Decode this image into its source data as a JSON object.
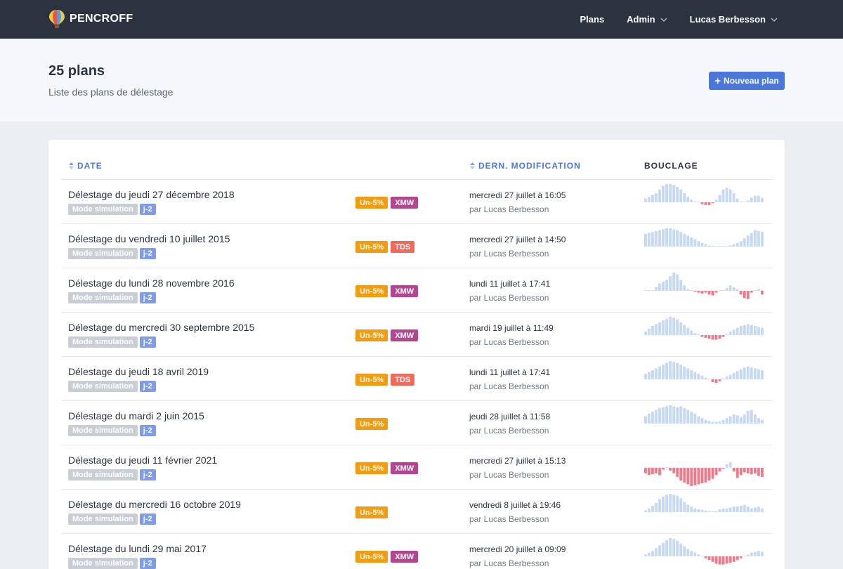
{
  "header": {
    "brand": "PENCROFF",
    "nav": {
      "plans": "Plans",
      "admin": "Admin",
      "user": "Lucas Berbesson"
    },
    "logo_icon": "hot-air-balloon-icon"
  },
  "hero": {
    "title": "25 plans",
    "subtitle": "Liste des plans de délestage",
    "new_button": "Nouveau plan"
  },
  "table": {
    "columns": {
      "date": "DATE",
      "modified": "DERN. MODIFICATION",
      "loop": "BOUCLAGE"
    },
    "colors": {
      "positive": "#c5d8f5",
      "negative": "#ee7a8a"
    },
    "rows": [
      {
        "title": "Délestage du jeudi 27 décembre 2018",
        "mode": "Mode simulation",
        "day": "j-2",
        "badges": [
          {
            "label": "Un-5%",
            "kind": "un"
          },
          {
            "label": "XMW",
            "kind": "xmw"
          }
        ],
        "modified": "mercredi 27 juillet à 16:05",
        "by": "par Lucas Berbesson",
        "loop": [
          0.2,
          0.3,
          0.4,
          0.5,
          0.7,
          0.9,
          1,
          1,
          0.95,
          0.85,
          0.7,
          0.5,
          0.3,
          0.15,
          0.05,
          0,
          -0.1,
          -0.15,
          -0.15,
          -0.05,
          0.15,
          0.4,
          0.7,
          0.8,
          0.7,
          0.5,
          0.2,
          0.05,
          0,
          0.1,
          0.25,
          0.35,
          0.35,
          0.25
        ]
      },
      {
        "title": "Délestage du vendredi 10 juillet 2015",
        "mode": "Mode simulation",
        "day": "j-2",
        "badges": [
          {
            "label": "Un-5%",
            "kind": "un"
          },
          {
            "label": "TDS",
            "kind": "tds"
          }
        ],
        "modified": "mercredi 27 juillet à 14:50",
        "by": "par Lucas Berbesson",
        "loop": [
          0.7,
          0.75,
          0.8,
          0.85,
          0.9,
          0.95,
          1,
          1,
          0.95,
          0.9,
          0.8,
          0.7,
          0.6,
          0.5,
          0.4,
          0.3,
          0.2,
          0.12,
          0.06,
          0.03,
          0.01,
          0,
          0.01,
          0.03,
          0.07,
          0.12,
          0.2,
          0.3,
          0.45,
          0.6,
          0.75,
          0.9,
          0.85,
          0.8
        ]
      },
      {
        "title": "Délestage du lundi 28 novembre 2016",
        "mode": "Mode simulation",
        "day": "j-2",
        "badges": [
          {
            "label": "Un-5%",
            "kind": "un"
          },
          {
            "label": "XMW",
            "kind": "xmw"
          }
        ],
        "modified": "lundi 11 juillet à 17:41",
        "by": "par Lucas Berbesson",
        "loop": [
          0,
          0,
          0,
          0.2,
          0.4,
          0.5,
          0.6,
          0.8,
          1,
          0.9,
          0.6,
          0.3,
          0.1,
          0,
          -0.05,
          -0.1,
          -0.15,
          -0.1,
          -0.2,
          -0.25,
          -0.1,
          0,
          0.05,
          0.15,
          0.3,
          0.2,
          0.1,
          -0.2,
          -0.4,
          -0.45,
          -0.1,
          0,
          0.1,
          -0.2
        ]
      },
      {
        "title": "Délestage du mercredi 30 septembre 2015",
        "mode": "Mode simulation",
        "day": "j-2",
        "badges": [
          {
            "label": "Un-5%",
            "kind": "un"
          },
          {
            "label": "XMW",
            "kind": "xmw"
          }
        ],
        "modified": "mardi 19 juillet à 11:49",
        "by": "par Lucas Berbesson",
        "loop": [
          0.2,
          0.35,
          0.5,
          0.6,
          0.7,
          0.8,
          0.9,
          1,
          0.95,
          0.85,
          0.7,
          0.55,
          0.4,
          0.25,
          0.1,
          0,
          -0.1,
          -0.15,
          -0.2,
          -0.25,
          -0.25,
          -0.2,
          -0.1,
          0.05,
          0.2,
          0.3,
          0.4,
          0.5,
          0.55,
          0.6,
          0.55,
          0.5,
          0.45,
          0.4
        ]
      },
      {
        "title": "Délestage du jeudi 18 avril 2019",
        "mode": "Mode simulation",
        "day": "j-2",
        "badges": [
          {
            "label": "Un-5%",
            "kind": "un"
          },
          {
            "label": "TDS",
            "kind": "tds"
          }
        ],
        "modified": "lundi 11 juillet à 17:41",
        "by": "par Lucas Berbesson",
        "loop": [
          0.3,
          0.4,
          0.5,
          0.6,
          0.7,
          0.8,
          0.9,
          1,
          0.95,
          0.9,
          0.8,
          0.7,
          0.6,
          0.5,
          0.4,
          0.3,
          0.2,
          0.1,
          0,
          -0.15,
          -0.2,
          -0.1,
          0.05,
          0.15,
          0.25,
          0.35,
          0.45,
          0.55,
          0.65,
          0.7,
          0.65,
          0.6,
          0.55,
          0.5
        ]
      },
      {
        "title": "Délestage du mardi 2 juin 2015",
        "mode": "Mode simulation",
        "day": "j-2",
        "badges": [
          {
            "label": "Un-5%",
            "kind": "un"
          }
        ],
        "modified": "jeudi 28 juillet à 11:58",
        "by": "par Lucas Berbesson",
        "loop": [
          0.4,
          0.55,
          0.65,
          0.75,
          0.85,
          0.9,
          0.95,
          1,
          0.95,
          0.9,
          0.95,
          0.85,
          0.75,
          0.65,
          0.55,
          0.4,
          0.3,
          0.2,
          0.15,
          0.1,
          0.1,
          0.12,
          0.2,
          0.3,
          0.4,
          0.5,
          0.45,
          0.35,
          0.5,
          0.7,
          0.75,
          0.5,
          0.3,
          0.2
        ]
      },
      {
        "title": "Délestage du jeudi 11 février 2021",
        "mode": "Mode simulation",
        "day": "j-2",
        "badges": [
          {
            "label": "Un-5%",
            "kind": "un"
          },
          {
            "label": "XMW",
            "kind": "xmw"
          }
        ],
        "modified": "mercredi 27 juillet à 15:13",
        "by": "par Lucas Berbesson",
        "loop": [
          -0.3,
          -0.4,
          -0.35,
          -0.3,
          -0.4,
          -0.1,
          0,
          -0.15,
          -0.3,
          -0.5,
          -0.7,
          -0.8,
          -0.9,
          -1,
          -0.95,
          -0.9,
          -0.85,
          -0.8,
          -0.7,
          -0.6,
          -0.4,
          -0.2,
          -0.05,
          0.2,
          0.3,
          -0.2,
          -0.55,
          -0.4,
          -0.25,
          -0.3,
          -0.35,
          -0.3,
          -0.45,
          -0.5
        ]
      },
      {
        "title": "Délestage du mercredi 16 octobre 2019",
        "mode": "Mode simulation",
        "day": "j-2",
        "badges": [
          {
            "label": "Un-5%",
            "kind": "un"
          }
        ],
        "modified": "vendredi 8 juillet à 19:46",
        "by": "par Lucas Berbesson",
        "loop": [
          0.1,
          0.2,
          0.35,
          0.5,
          0.7,
          0.85,
          0.95,
          1,
          0.95,
          0.9,
          0.75,
          0.55,
          0.4,
          0.3,
          0.2,
          0.15,
          0.12,
          0.08,
          0.05,
          0,
          0.05,
          0.15,
          0.2,
          0.2,
          0.25,
          0.3,
          0.3,
          0.35,
          0.4,
          0.3,
          0.2,
          0.25,
          0.3,
          0.2
        ]
      },
      {
        "title": "Délestage du lundi 29 mai 2017",
        "mode": "Mode simulation",
        "day": "j-2",
        "badges": [
          {
            "label": "Un-5%",
            "kind": "un"
          },
          {
            "label": "XMW",
            "kind": "xmw"
          }
        ],
        "modified": "mercredi 20 juillet à 09:09",
        "by": "par Lucas Berbesson",
        "loop": [
          0.1,
          0.2,
          0.3,
          0.45,
          0.6,
          0.75,
          0.9,
          1,
          0.95,
          0.85,
          0.7,
          0.55,
          0.4,
          0.3,
          0.2,
          0.1,
          0,
          -0.1,
          -0.2,
          -0.3,
          -0.4,
          -0.45,
          -0.45,
          -0.4,
          -0.35,
          -0.3,
          -0.2,
          -0.1,
          0,
          0.1,
          0.2,
          0.25,
          0.3,
          0.25
        ]
      }
    ]
  }
}
